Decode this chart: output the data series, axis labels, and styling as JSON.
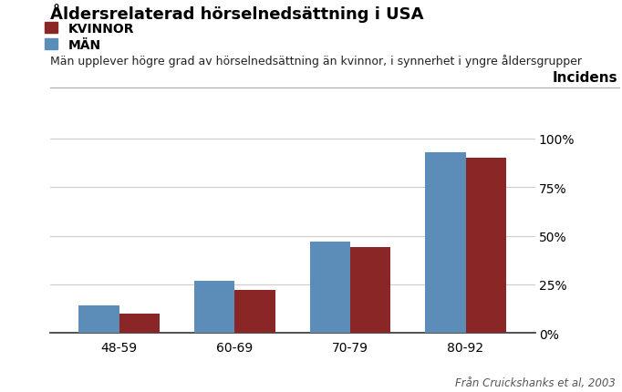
{
  "title": "Åldersrelaterad hörselnedsättning i USA",
  "subtitle": "Män upplever högre grad av hörselnedsättning än kvinnor, i synnerhet i yngre åldersgrupper",
  "ylabel": "Incidens",
  "source": "Från Cruickshanks et al, 2003",
  "categories": [
    "48-59",
    "60-69",
    "70-79",
    "80-92"
  ],
  "men_values": [
    0.14,
    0.27,
    0.47,
    0.93
  ],
  "women_values": [
    0.1,
    0.22,
    0.44,
    0.9
  ],
  "men_color": "#5b8db8",
  "women_color": "#8b2626",
  "bar_width": 0.35,
  "yticks": [
    0,
    0.25,
    0.5,
    0.75,
    1.0
  ],
  "ytick_labels": [
    "0%",
    "25%",
    "50%",
    "75%",
    "100%"
  ],
  "legend_kvinnor": "KVINNOR",
  "legend_man": "MÄN",
  "background_color": "#ffffff",
  "grid_color": "#cccccc",
  "title_fontsize": 13,
  "subtitle_fontsize": 9,
  "ylabel_fontsize": 11,
  "tick_fontsize": 10,
  "legend_fontsize": 10,
  "source_fontsize": 8.5
}
